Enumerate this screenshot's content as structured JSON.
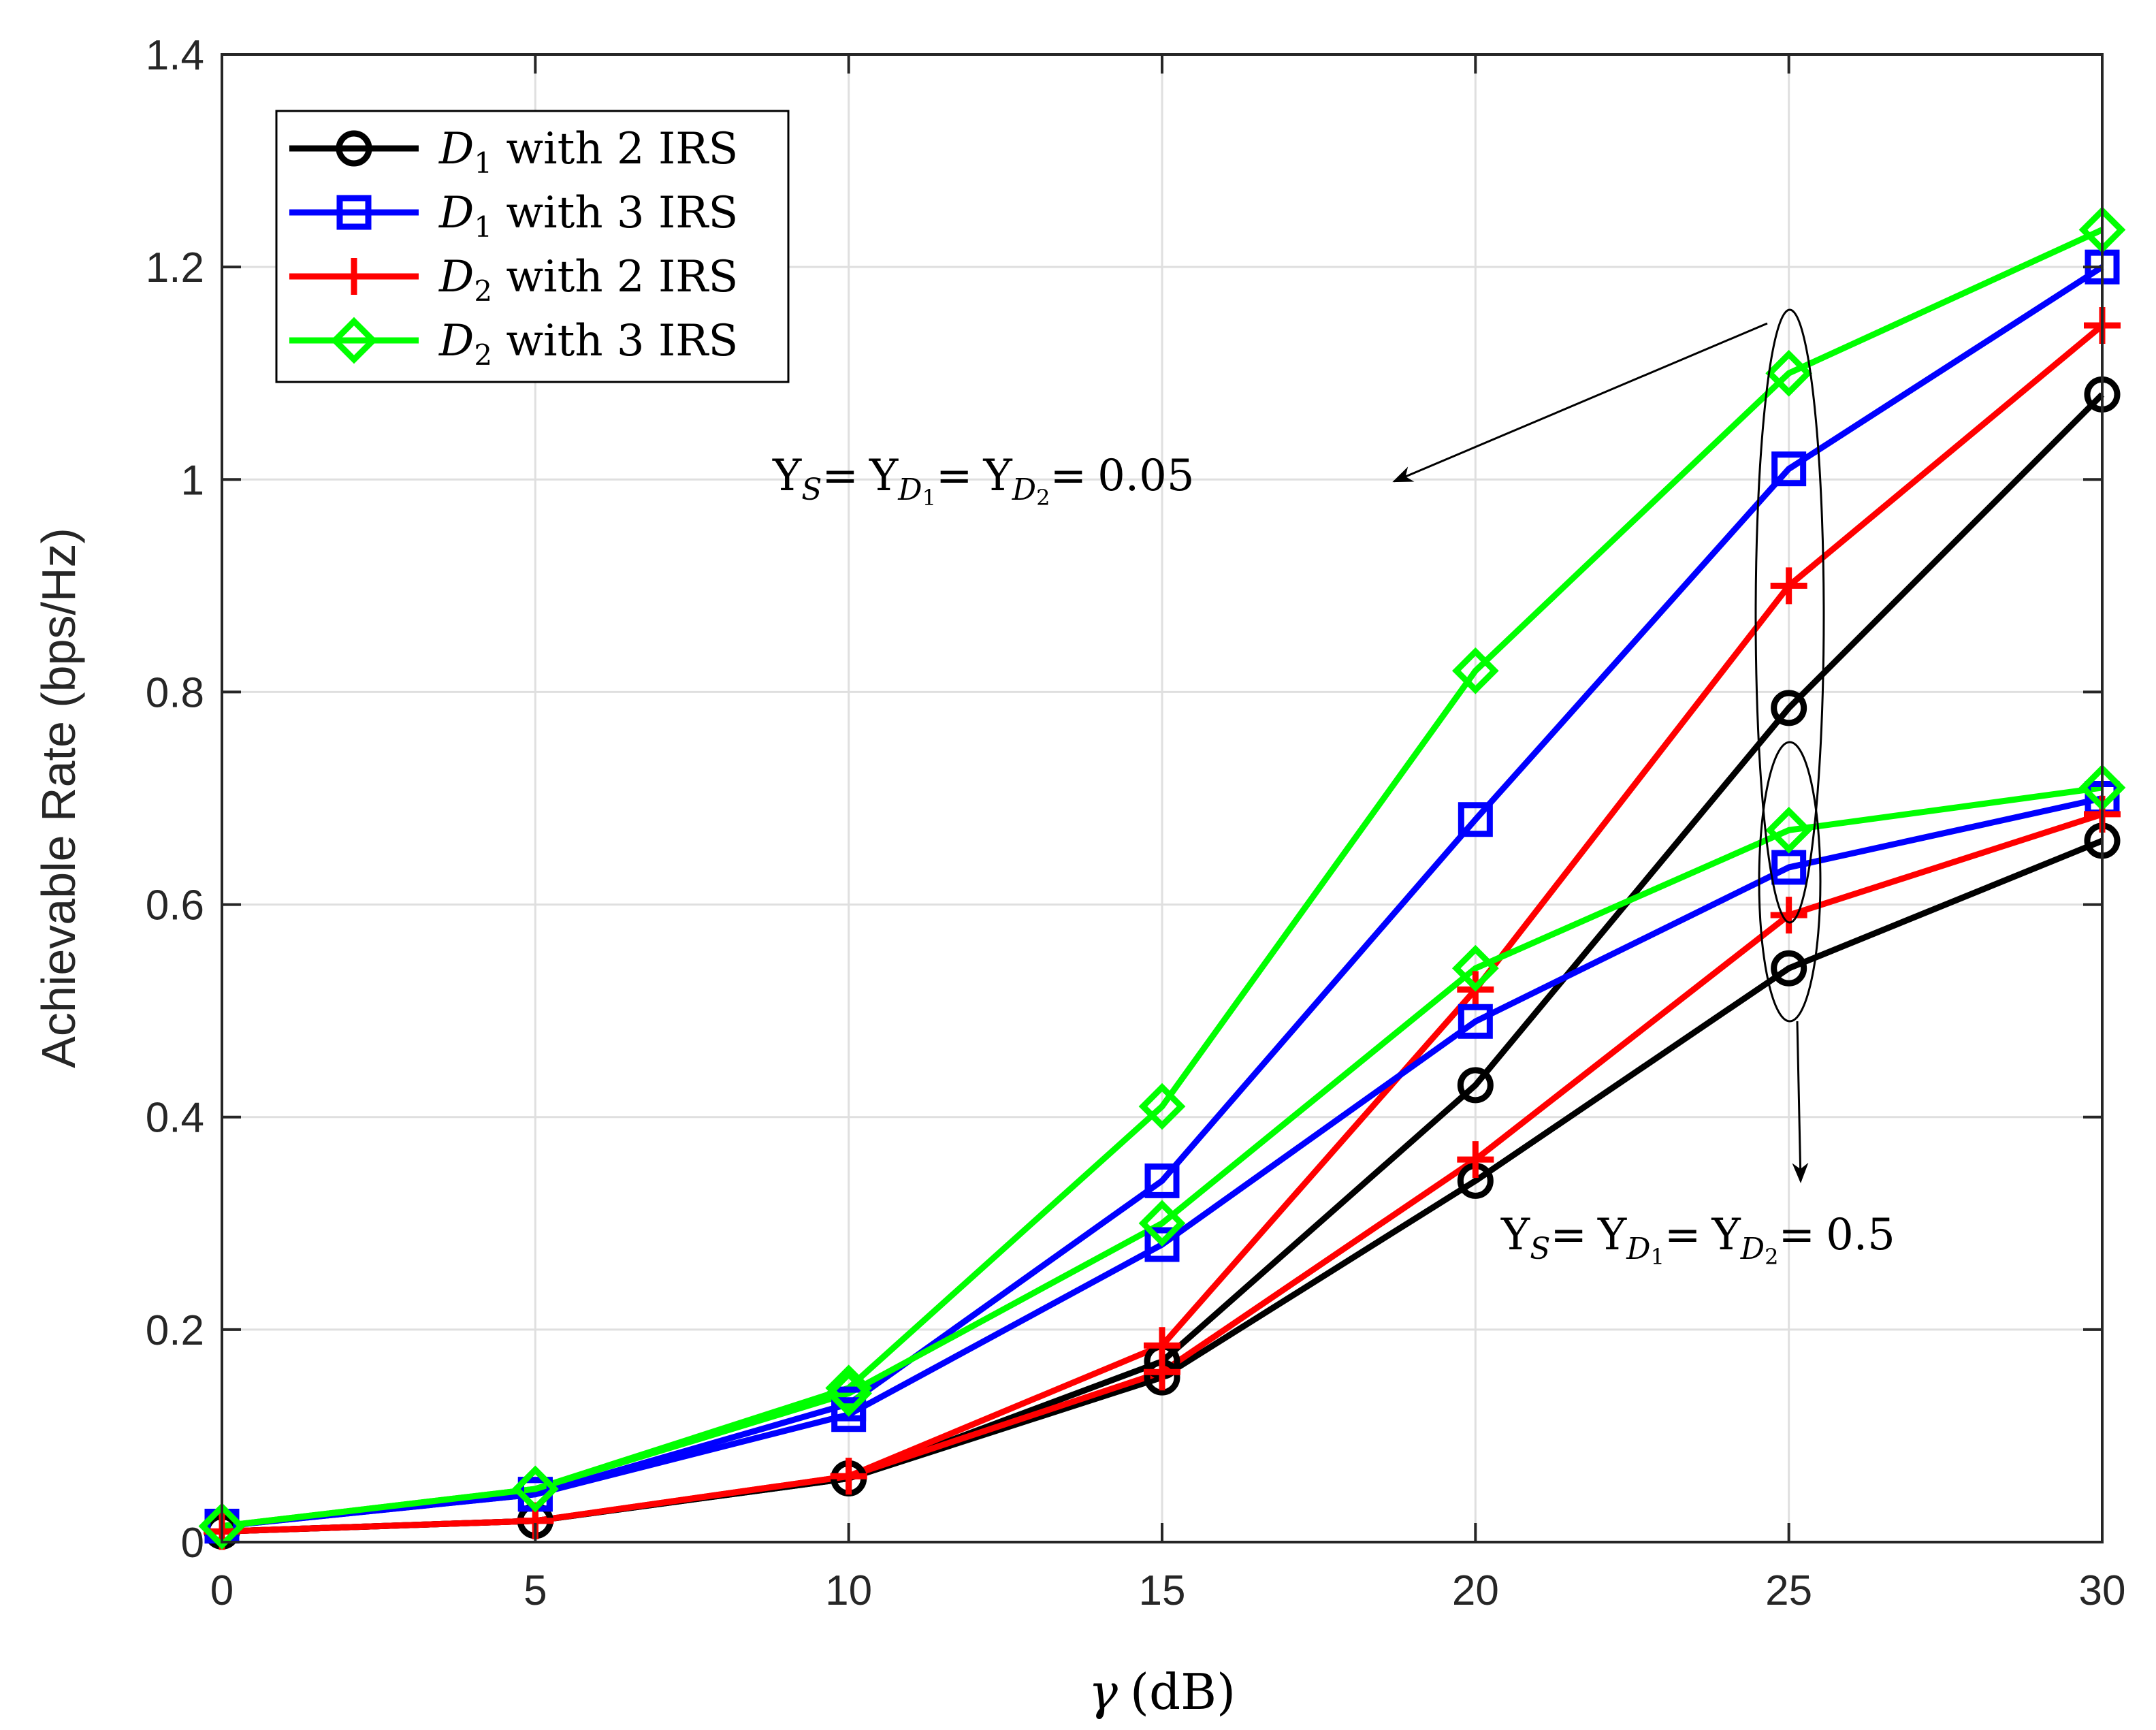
{
  "chart_data": {
    "type": "line",
    "title": "",
    "xlabel": "γ (dB)",
    "xlabel_symbol": "γ",
    "xlabel_unit": "(dB)",
    "ylabel": "Achievable Rate (bps/Hz)",
    "xlim": [
      0,
      30
    ],
    "ylim": [
      0,
      1.4
    ],
    "x_ticks": [
      0,
      5,
      10,
      15,
      20,
      25,
      30
    ],
    "x_tick_labels": [
      "0",
      "5",
      "10",
      "15",
      "20",
      "25",
      "30"
    ],
    "y_ticks": [
      0,
      0.2,
      0.4,
      0.6,
      0.8,
      1.0,
      1.2,
      1.4
    ],
    "y_tick_labels": [
      "0",
      "0.2",
      "0.4",
      "0.6",
      "0.8",
      "1",
      "1.2",
      "1.4"
    ],
    "grid": true,
    "legend_position": "top-left",
    "x": [
      0,
      5,
      10,
      15,
      20,
      25,
      30
    ],
    "series": [
      {
        "name": "D1 with 2 IRS",
        "legend_var": "D",
        "legend_sub": "1",
        "legend_rest": " with 2 IRS",
        "color": "#000000",
        "marker": "circle",
        "group": "Υ=0.05",
        "values": [
          0.01,
          0.02,
          0.06,
          0.17,
          0.43,
          0.785,
          1.08
        ]
      },
      {
        "name": "D1 with 3 IRS",
        "legend_var": "D",
        "legend_sub": "1",
        "legend_rest": " with 3 IRS",
        "color": "#0000ff",
        "marker": "square",
        "group": "Υ=0.05",
        "values": [
          0.015,
          0.045,
          0.13,
          0.34,
          0.68,
          1.01,
          1.2
        ]
      },
      {
        "name": "D2 with 2 IRS",
        "legend_var": "D",
        "legend_sub": "2",
        "legend_rest": " with 2 IRS",
        "color": "#ff0000",
        "marker": "plus",
        "group": "Υ=0.05",
        "values": [
          0.01,
          0.02,
          0.062,
          0.185,
          0.52,
          0.9,
          1.145
        ]
      },
      {
        "name": "D2 with 3 IRS",
        "legend_var": "D",
        "legend_sub": "2",
        "legend_rest": " with 3 IRS",
        "color": "#00ff00",
        "marker": "diamond",
        "group": "Υ=0.05",
        "values": [
          0.015,
          0.05,
          0.145,
          0.41,
          0.82,
          1.1,
          1.235
        ]
      },
      {
        "name": "D1 with 2 IRS",
        "color": "#000000",
        "marker": "circle",
        "group": "Υ=0.5",
        "values": [
          0.01,
          0.02,
          0.06,
          0.155,
          0.34,
          0.54,
          0.66
        ]
      },
      {
        "name": "D1 with 3 IRS",
        "color": "#0000ff",
        "marker": "square",
        "group": "Υ=0.5",
        "values": [
          0.015,
          0.045,
          0.12,
          0.28,
          0.49,
          0.635,
          0.7
        ]
      },
      {
        "name": "D2 with 2 IRS",
        "color": "#ff0000",
        "marker": "plus",
        "group": "Υ=0.5",
        "values": [
          0.01,
          0.02,
          0.062,
          0.16,
          0.36,
          0.59,
          0.685
        ]
      },
      {
        "name": "D2 with 3 IRS",
        "color": "#00ff00",
        "marker": "diamond",
        "group": "Υ=0.5",
        "values": [
          0.015,
          0.05,
          0.14,
          0.3,
          0.54,
          0.67,
          0.71
        ]
      }
    ],
    "annotations": [
      {
        "id": "high",
        "text": "ΥS= ΥD1= ΥD2= 0.05",
        "parts": {
          "sym": "Υ",
          "s": "S",
          "d": "D",
          "one": "1",
          "two": "2",
          "eq": "=",
          "value": "0.05"
        },
        "ellipse_center": [
          25,
          0.905
        ],
        "points_to": "left"
      },
      {
        "id": "low",
        "text": "ΥS= ΥD1= ΥD2= 0.5",
        "parts": {
          "sym": "Υ",
          "s": "S",
          "d": "D",
          "one": "1",
          "two": "2",
          "eq": "=",
          "value": "0.5"
        },
        "ellipse_center": [
          25,
          0.605
        ],
        "points_to": "down"
      }
    ]
  }
}
